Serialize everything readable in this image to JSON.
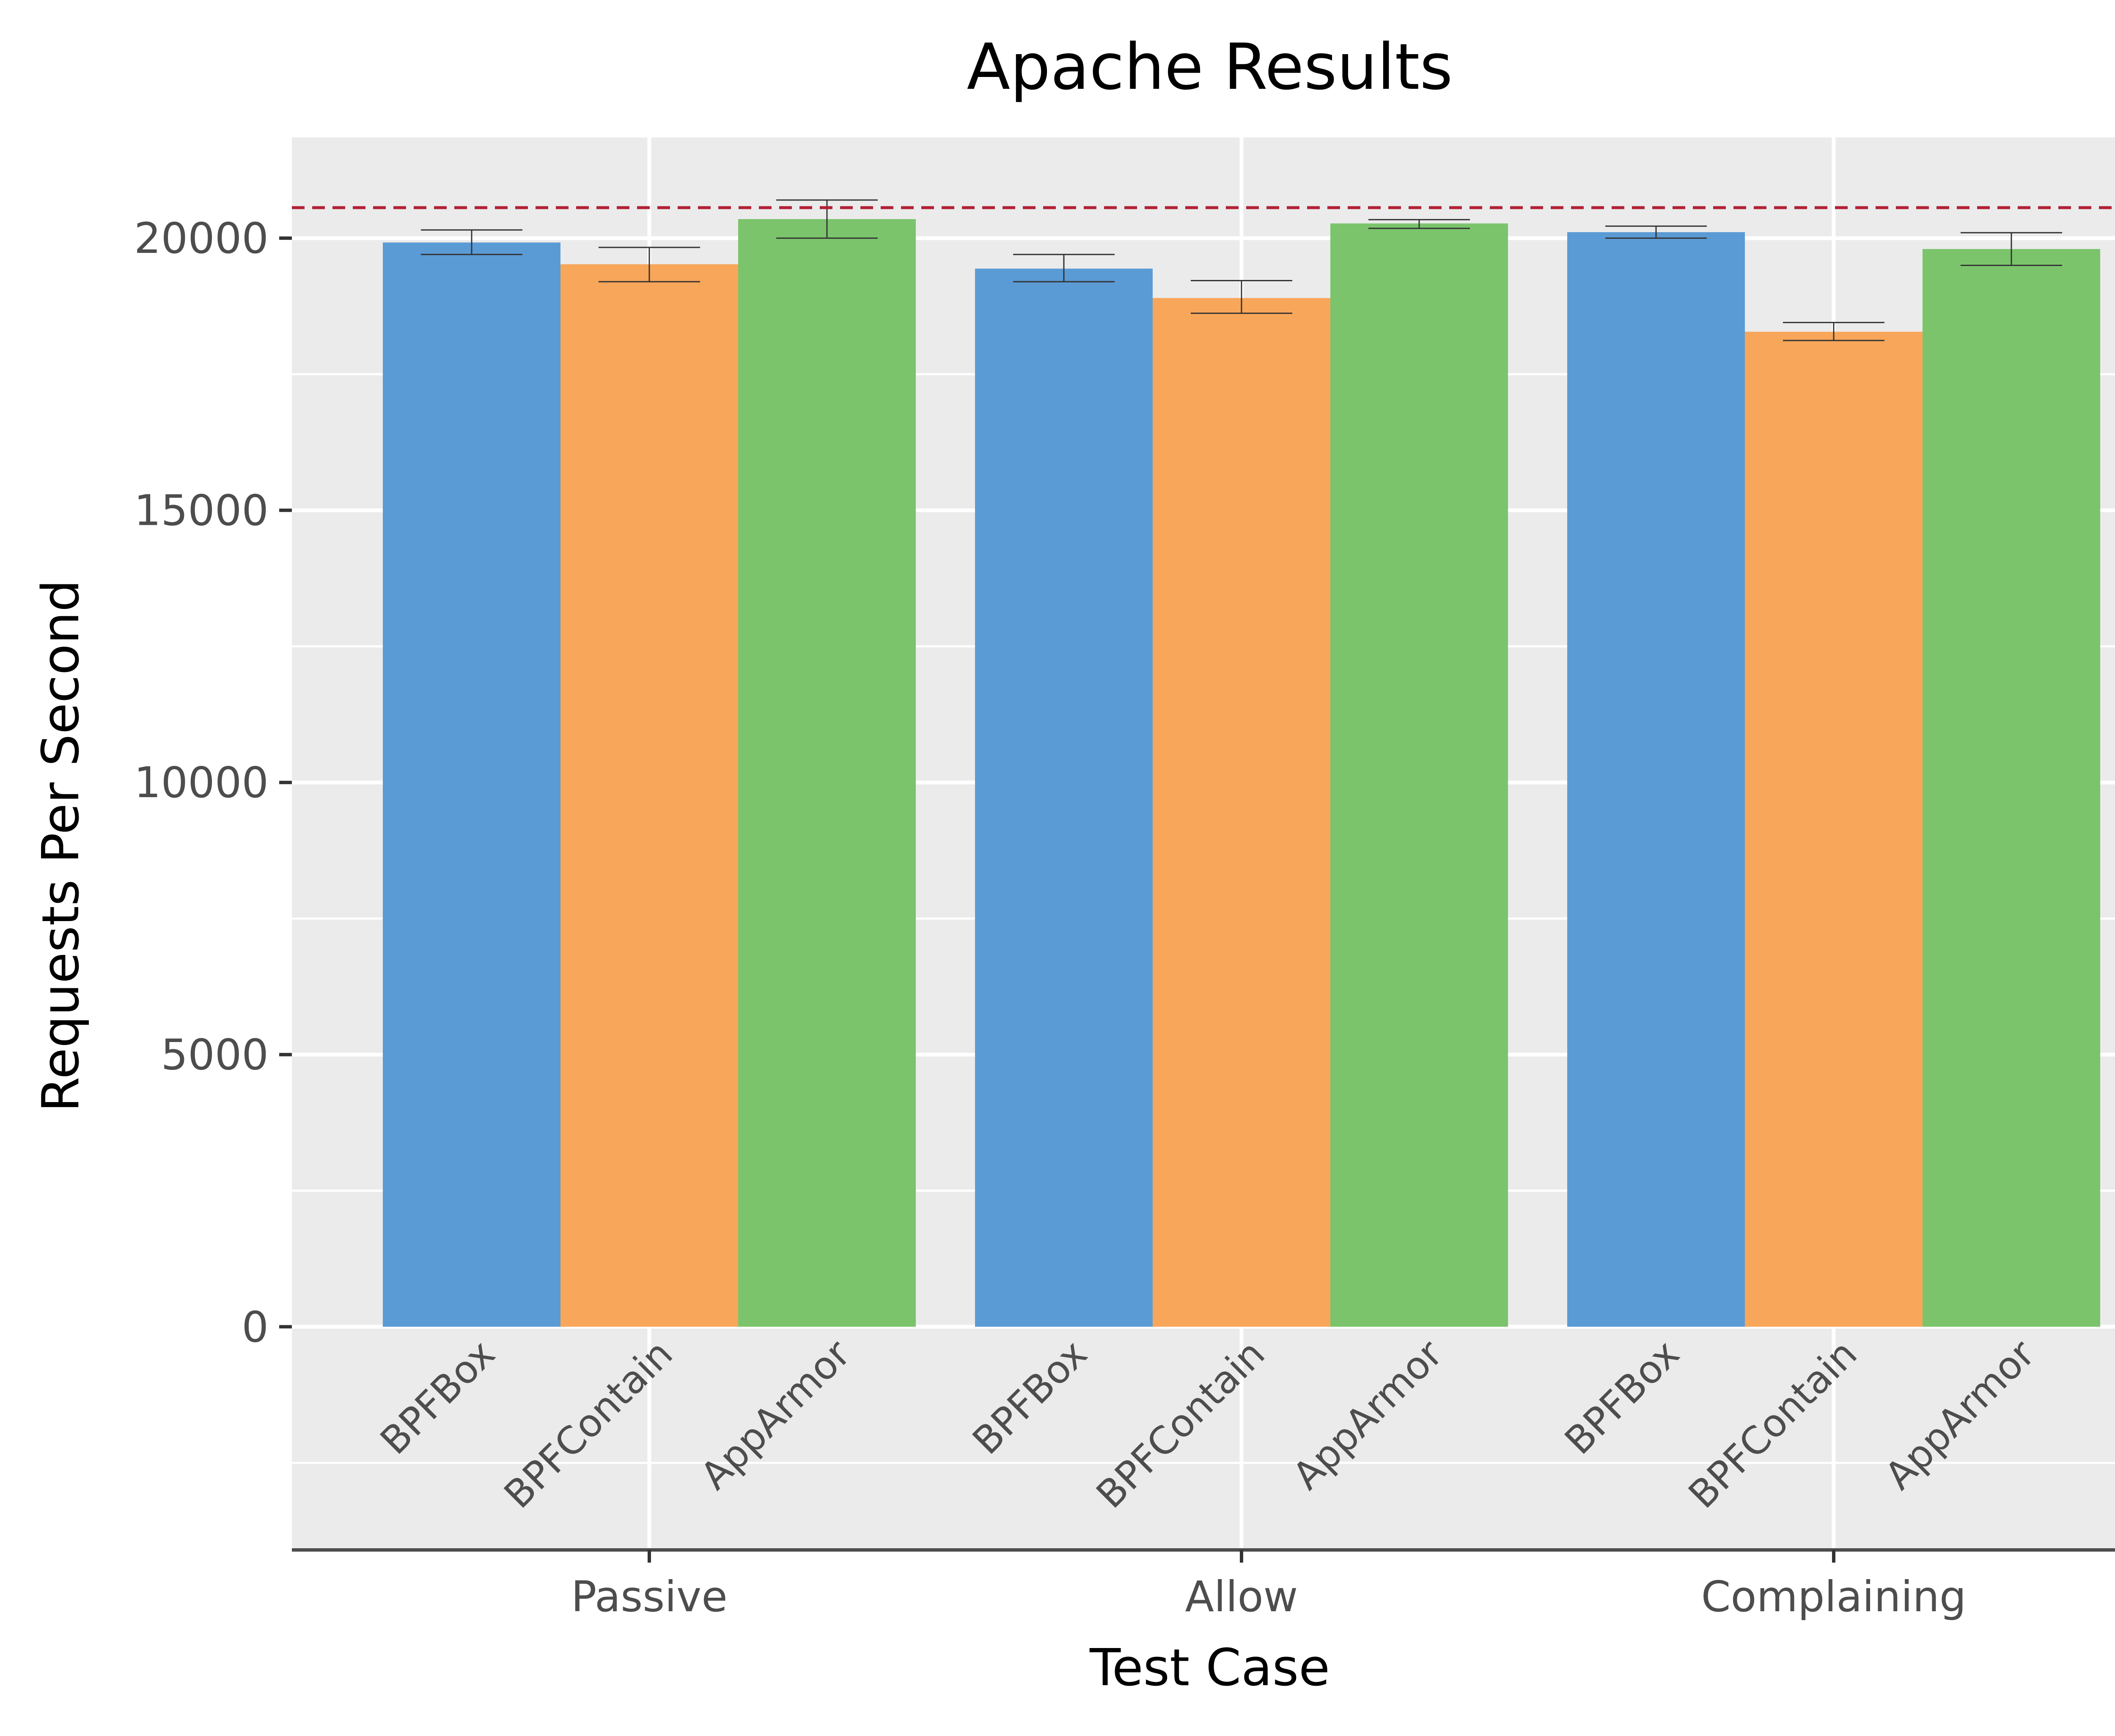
{
  "chart_data": {
    "type": "bar",
    "title": "Apache Results",
    "xlabel": "Test Case",
    "ylabel": "Requests Per Second",
    "categories": [
      "Passive",
      "Allow",
      "Complaining"
    ],
    "series": [
      {
        "name": "BPFBox",
        "color": "#5b9bd5",
        "values": [
          19920,
          19440,
          20110
        ],
        "error_low": [
          19700,
          19200,
          20000
        ],
        "error_high": [
          20150,
          19700,
          20220
        ]
      },
      {
        "name": "BPFContain",
        "color": "#f8a65a",
        "values": [
          19520,
          18900,
          18280
        ],
        "error_low": [
          19200,
          18620,
          18120
        ],
        "error_high": [
          19830,
          19220,
          18450
        ]
      },
      {
        "name": "AppArmor",
        "color": "#7bc46c",
        "values": [
          20350,
          20270,
          19800
        ],
        "error_low": [
          20000,
          20180,
          19500
        ],
        "error_high": [
          20700,
          20340,
          20100
        ]
      }
    ],
    "reference_line": {
      "value": 20560,
      "color": "#b22034",
      "style": "dashed"
    },
    "ylim": [
      -4100,
      21850
    ],
    "yticks": [
      0,
      5000,
      10000,
      15000,
      20000
    ],
    "ytick_labels": [
      "0",
      "5000",
      "10000",
      "15000",
      "20000"
    ],
    "grid": true,
    "panel_background": "#ebebeb"
  }
}
